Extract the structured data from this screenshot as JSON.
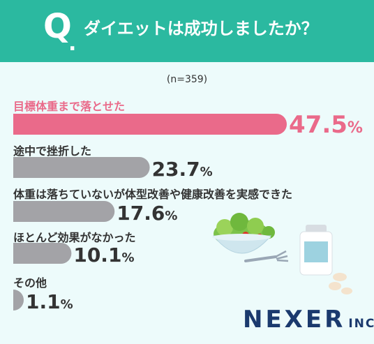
{
  "header": {
    "q_mark": "Q",
    "q_dot": ".",
    "question": "ダイエットは成功しましたか？"
  },
  "sample": "(n=359)",
  "colors": {
    "header": "#2bb9a0",
    "background": "#edfbfb",
    "highlight": "#ea6a8a",
    "bar": "#a3a3a7",
    "text": "#333333",
    "brand": "#1b3a6e"
  },
  "brand": {
    "name": "NEXER",
    "suffix": "INC."
  },
  "chart_data": {
    "type": "bar",
    "orientation": "horizontal",
    "categories": [
      "目標体重まで落とせた",
      "途中で挫折した",
      "体重は落ちていないが体型改善や健康改善を実感できた",
      "ほとんど効果がなかった",
      "その他"
    ],
    "values": [
      47.5,
      23.7,
      17.6,
      10.1,
      1.1
    ],
    "unit": "%",
    "highlight_index": 0,
    "xlim": [
      0,
      47.5
    ],
    "grid": false,
    "legend": "none"
  },
  "illustration": {
    "icons": [
      "salad-bowl-icon",
      "fork-icon",
      "supplement-bottle-icon",
      "pills-icon"
    ]
  }
}
